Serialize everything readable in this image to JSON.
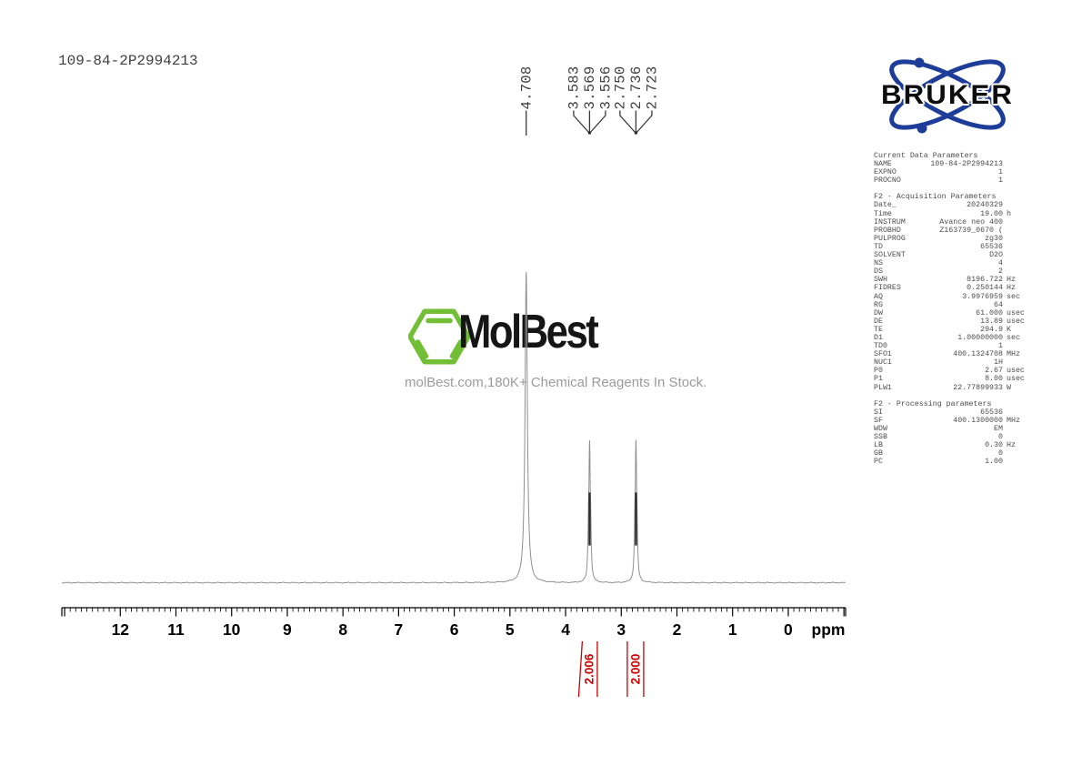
{
  "header": {
    "sample_id": "109-84-2P2994213"
  },
  "branding": {
    "bruker": "BRUKER",
    "molbest": "MolBest",
    "molbest_tagline": "molBest.com,180K+ Chemical Reagents In Stock.",
    "colors": {
      "bruker_blue": "#1E3D99",
      "molbest_green": "#72BF36",
      "integral_red": "#CC0000"
    }
  },
  "parameters": {
    "sections": [
      {
        "title": "Current Data Parameters",
        "rows": [
          [
            "NAME",
            "109-84-2P2994213",
            ""
          ],
          [
            "EXPNO",
            "1",
            ""
          ],
          [
            "PROCNO",
            "1",
            ""
          ]
        ]
      },
      {
        "title": "F2 - Acquisition Parameters",
        "rows": [
          [
            "Date_",
            "20240329",
            ""
          ],
          [
            "Time",
            "19.00",
            "h"
          ],
          [
            "INSTRUM",
            "Avance neo 400",
            ""
          ],
          [
            "PROBHD",
            "Z163739_0670 (",
            ""
          ],
          [
            "PULPROG",
            "zg30",
            ""
          ],
          [
            "TD",
            "65536",
            ""
          ],
          [
            "SOLVENT",
            "D2O",
            ""
          ],
          [
            "NS",
            "4",
            ""
          ],
          [
            "DS",
            "2",
            ""
          ],
          [
            "SWH",
            "8196.722",
            "Hz"
          ],
          [
            "FIDRES",
            "0.250144",
            "Hz"
          ],
          [
            "AQ",
            "3.9976959",
            "sec"
          ],
          [
            "RG",
            "64",
            ""
          ],
          [
            "DW",
            "61.000",
            "usec"
          ],
          [
            "DE",
            "13.89",
            "usec"
          ],
          [
            "TE",
            "294.9",
            "K"
          ],
          [
            "D1",
            "1.00000000",
            "sec"
          ],
          [
            "TD0",
            "1",
            ""
          ],
          [
            "SFO1",
            "400.1324708",
            "MHz"
          ],
          [
            "NUC1",
            "1H",
            ""
          ],
          [
            "P0",
            "2.67",
            "usec"
          ],
          [
            "P1",
            "8.00",
            "usec"
          ],
          [
            "PLW1",
            "22.77899933",
            "W"
          ]
        ]
      },
      {
        "title": "F2 - Processing parameters",
        "rows": [
          [
            "SI",
            "65536",
            ""
          ],
          [
            "SF",
            "400.1300000",
            "MHz"
          ],
          [
            "WDW",
            "EM",
            ""
          ],
          [
            "SSB",
            "0",
            ""
          ],
          [
            "LB",
            "0.30",
            "Hz"
          ],
          [
            "GB",
            "0",
            ""
          ],
          [
            "PC",
            "1.00",
            ""
          ]
        ]
      }
    ]
  },
  "chart_data": {
    "type": "line",
    "xlabel": "ppm",
    "x_axis": {
      "max_ppm": 13.05,
      "min_ppm": -1.03,
      "inverted": true,
      "major_ticks": [
        12,
        11,
        10,
        9,
        8,
        7,
        6,
        5,
        4,
        3,
        2,
        1,
        0
      ],
      "minor_tick_step": 0.1
    },
    "peaks": [
      {
        "center_ppm": 4.708,
        "lines_ppm": [
          4.708
        ],
        "labels": [
          "4.708"
        ],
        "height_frac": 1.0
      },
      {
        "center_ppm": 3.569,
        "lines_ppm": [
          3.583,
          3.569,
          3.556
        ],
        "labels": [
          "3.583",
          "3.569",
          "3.556"
        ],
        "height_frac": 0.46,
        "integral": "2.006"
      },
      {
        "center_ppm": 2.736,
        "lines_ppm": [
          2.75,
          2.736,
          2.723
        ],
        "labels": [
          "2.750",
          "2.736",
          "2.723"
        ],
        "height_frac": 0.46,
        "integral": "2.000"
      }
    ],
    "integral_labels": [
      "2.006",
      "2.000"
    ]
  }
}
